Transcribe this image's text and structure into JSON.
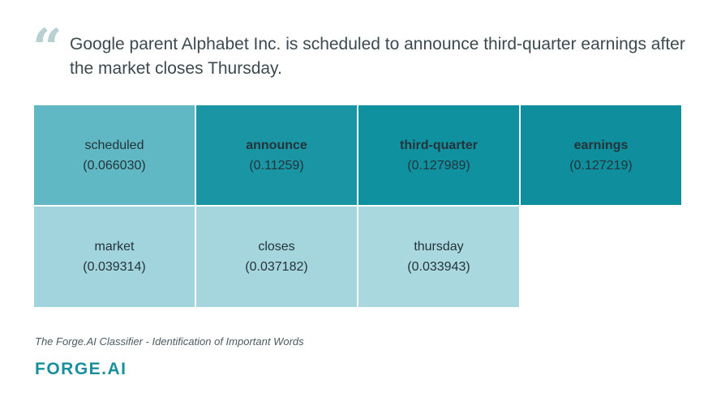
{
  "quote": {
    "mark": "“",
    "text": "Google parent Alphabet Inc. is scheduled to announce third-quarter earnings after the market closes Thursday."
  },
  "cells": [
    {
      "word": "scheduled",
      "score": "(0.066030)",
      "bold": false,
      "color": "#5fb8c3"
    },
    {
      "word": "announce",
      "score": "(0.11259)",
      "bold": true,
      "color": "#1a95a3"
    },
    {
      "word": "third-quarter",
      "score": "(0.127989)",
      "bold": true,
      "color": "#10919f"
    },
    {
      "word": "earnings",
      "score": "(0.127219)",
      "bold": true,
      "color": "#0f8f9d"
    },
    {
      "word": "market",
      "score": "(0.039314)",
      "bold": false,
      "color": "#a1d4dc"
    },
    {
      "word": "closes",
      "score": "(0.037182)",
      "bold": false,
      "color": "#a5d6dd"
    },
    {
      "word": "thursday",
      "score": "(0.033943)",
      "bold": false,
      "color": "#aad8df"
    }
  ],
  "caption": "The Forge.AI Classifier - Identification of Important Words",
  "logo": "FORGE.AI"
}
